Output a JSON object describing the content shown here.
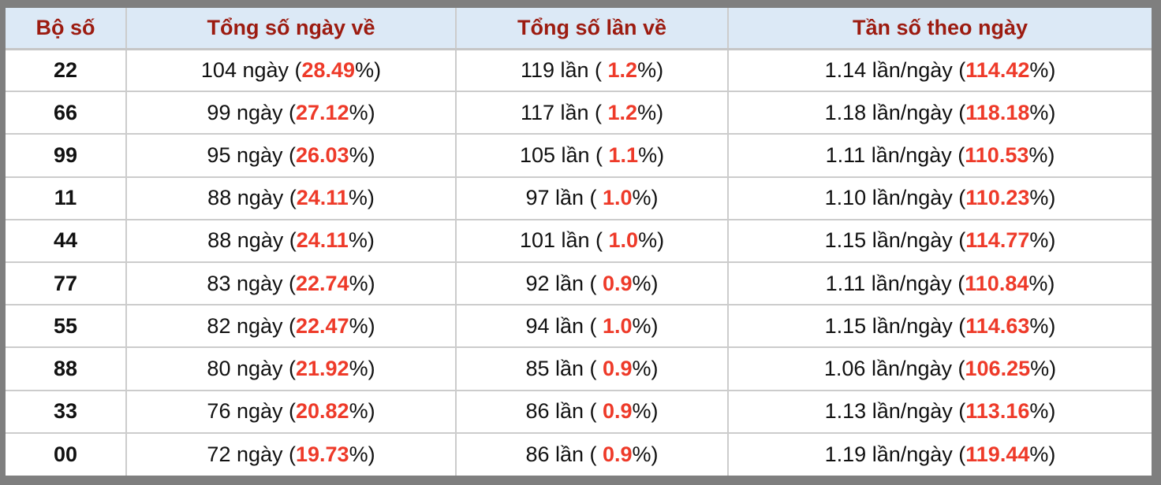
{
  "colors": {
    "page_background": "#7f7f7f",
    "header_background": "#dce9f6",
    "header_text": "#9c1b10",
    "accent_red": "#ee3a29",
    "cell_border": "#cccccc",
    "body_text": "#111111"
  },
  "chart_data": {
    "type": "table",
    "columns": [
      "Bộ số",
      "Tổng số ngày về",
      "Tổng số lần về",
      "Tần số theo ngày"
    ],
    "units": {
      "days": "ngày",
      "times": "lần",
      "freq": "lần/ngày"
    },
    "rows": [
      {
        "pair": "22",
        "days": "104",
        "days_pct": "28.49",
        "times": "119",
        "times_pct": "1.2",
        "freq": "1.14",
        "freq_pct": "114.42"
      },
      {
        "pair": "66",
        "days": "99",
        "days_pct": "27.12",
        "times": "117",
        "times_pct": "1.2",
        "freq": "1.18",
        "freq_pct": "118.18"
      },
      {
        "pair": "99",
        "days": "95",
        "days_pct": "26.03",
        "times": "105",
        "times_pct": "1.1",
        "freq": "1.11",
        "freq_pct": "110.53"
      },
      {
        "pair": "11",
        "days": "88",
        "days_pct": "24.11",
        "times": "97",
        "times_pct": "1.0",
        "freq": "1.10",
        "freq_pct": "110.23"
      },
      {
        "pair": "44",
        "days": "88",
        "days_pct": "24.11",
        "times": "101",
        "times_pct": "1.0",
        "freq": "1.15",
        "freq_pct": "114.77"
      },
      {
        "pair": "77",
        "days": "83",
        "days_pct": "22.74",
        "times": "92",
        "times_pct": "0.9",
        "freq": "1.11",
        "freq_pct": "110.84"
      },
      {
        "pair": "55",
        "days": "82",
        "days_pct": "22.47",
        "times": "94",
        "times_pct": "1.0",
        "freq": "1.15",
        "freq_pct": "114.63"
      },
      {
        "pair": "88",
        "days": "80",
        "days_pct": "21.92",
        "times": "85",
        "times_pct": "0.9",
        "freq": "1.06",
        "freq_pct": "106.25"
      },
      {
        "pair": "33",
        "days": "76",
        "days_pct": "20.82",
        "times": "86",
        "times_pct": "0.9",
        "freq": "1.13",
        "freq_pct": "113.16"
      },
      {
        "pair": "00",
        "days": "72",
        "days_pct": "19.73",
        "times": "86",
        "times_pct": "0.9",
        "freq": "1.19",
        "freq_pct": "119.44"
      }
    ]
  }
}
